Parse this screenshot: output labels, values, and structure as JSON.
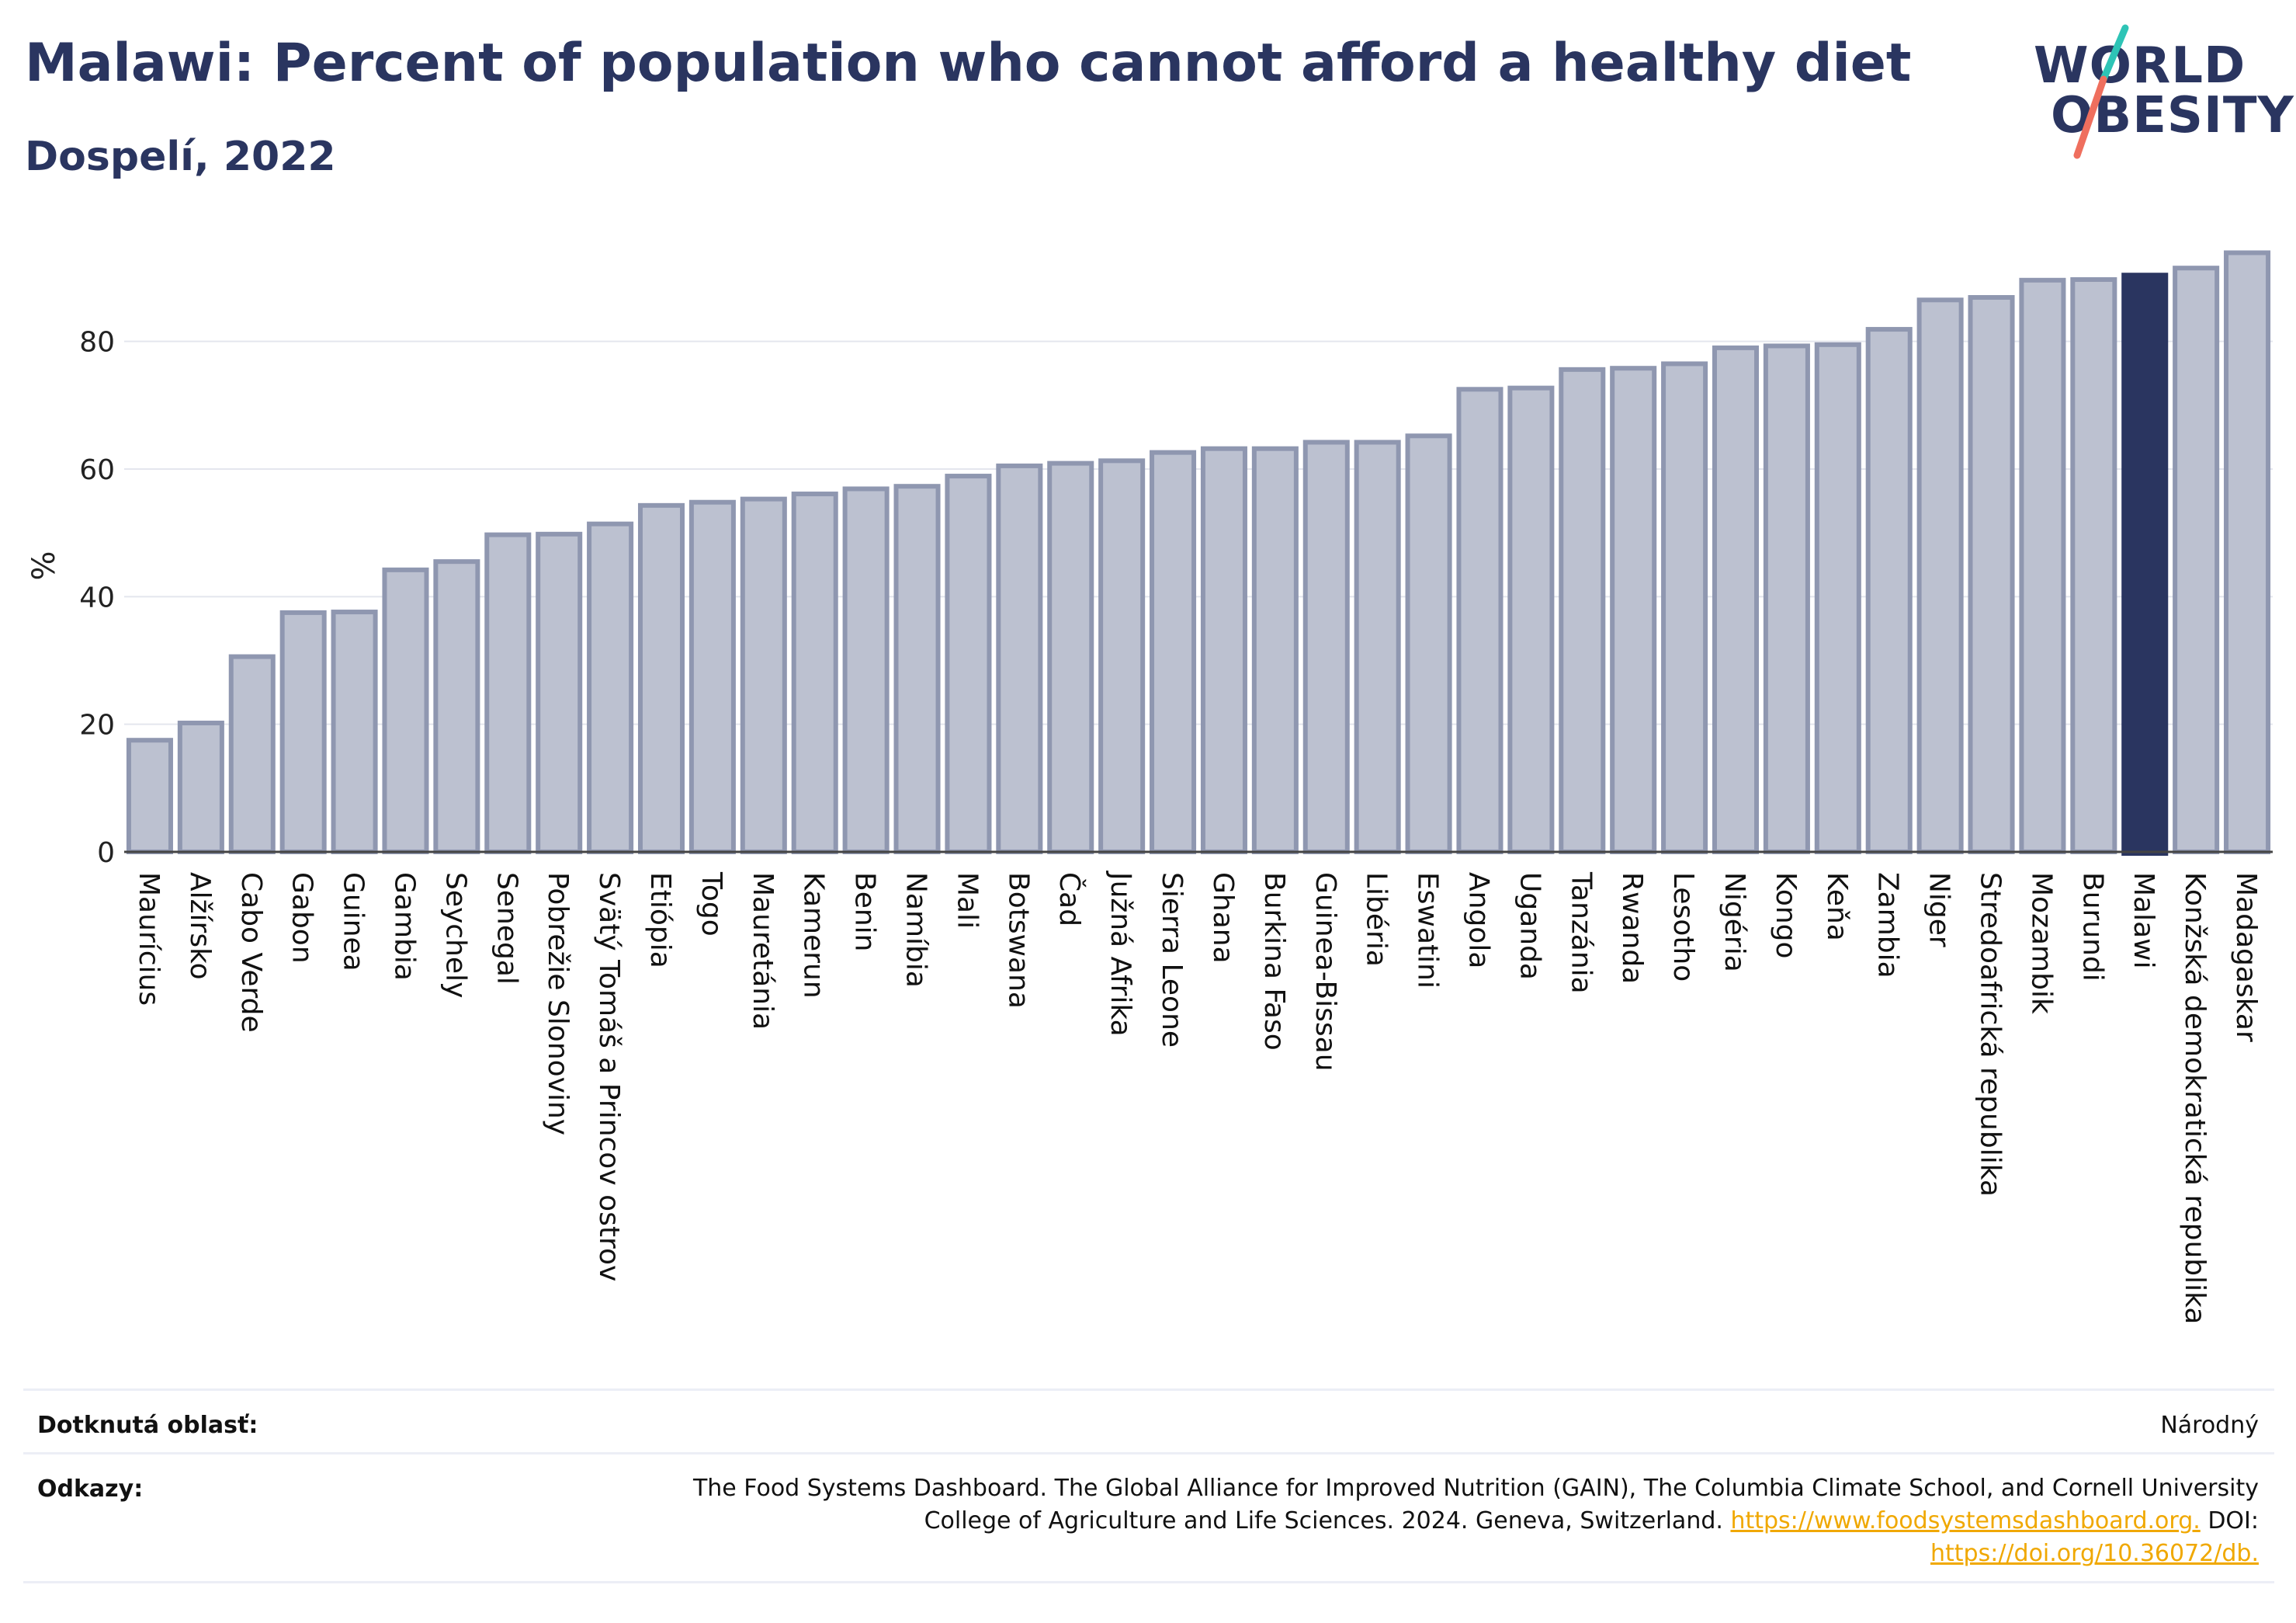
{
  "header": {
    "title": "Malawi: Percent of population who cannot afford a healthy diet",
    "subtitle": "Dospelí, 2022"
  },
  "logo": {
    "line1": "WORLD",
    "line2": "OBESITY",
    "accent1": "#2ec4b6",
    "accent2": "#ef6f5e"
  },
  "colors": {
    "bar": "#bcc1d0",
    "bar_border": "#8f97b0",
    "highlight": "#2a3560",
    "grid": "#e4e6ee"
  },
  "chart_data": {
    "type": "bar",
    "ylabel": "%",
    "ylim": [
      0,
      97
    ],
    "yticks": [
      0,
      20,
      40,
      60,
      80
    ],
    "highlight": "Malawi",
    "categories": [
      "Maurícius",
      "Alžírsko",
      "Cabo Verde",
      "Gabon",
      "Guinea",
      "Gambia",
      "Seychely",
      "Senegal",
      "Pobrežie Slonoviny",
      "Svätý Tomáš a Princov ostrov",
      "Etiópia",
      "Togo",
      "Mauretánia",
      "Kamerun",
      "Benin",
      "Namíbia",
      "Mali",
      "Botswana",
      "Čad",
      "Južná Afrika",
      "Sierra Leone",
      "Ghana",
      "Burkina Faso",
      "Guinea-Bissau",
      "Libéria",
      "Eswatini",
      "Angola",
      "Uganda",
      "Tanzánia",
      "Rwanda",
      "Lesotho",
      "Nigéria",
      "Kongo",
      "Keňa",
      "Zambia",
      "Niger",
      "Stredoafrická republika",
      "Mozambik",
      "Burundi",
      "Malawi",
      "Konžská demokratická republika",
      "Madagaskar"
    ],
    "values": [
      17.5,
      20.2,
      30.6,
      37.5,
      37.6,
      44.2,
      45.5,
      49.7,
      49.8,
      51.4,
      54.3,
      54.8,
      55.3,
      56.1,
      56.9,
      57.3,
      58.9,
      60.5,
      60.9,
      61.3,
      62.6,
      63.2,
      63.2,
      64.2,
      64.2,
      65.2,
      72.5,
      72.7,
      75.6,
      75.8,
      76.5,
      79.0,
      79.3,
      79.5,
      81.9,
      86.5,
      86.9,
      89.6,
      89.7,
      90.4,
      91.5,
      93.9
    ]
  },
  "footer": {
    "area_label": "Dotknutá oblasť:",
    "area_value": "Národný",
    "refs_label": "Odkazy:",
    "refs_line1": "The Food Systems Dashboard. The Global Alliance for Improved Nutrition (GAIN), The Columbia Climate School, and Cornell University",
    "refs_line2_text": "College of Agriculture and Life Sciences. 2024. Geneva, Switzerland.",
    "refs_link1": "https://www.foodsystemsdashboard.org.",
    "refs_doi": "DOI:",
    "refs_link2": "https://doi.org/10.36072/db."
  }
}
